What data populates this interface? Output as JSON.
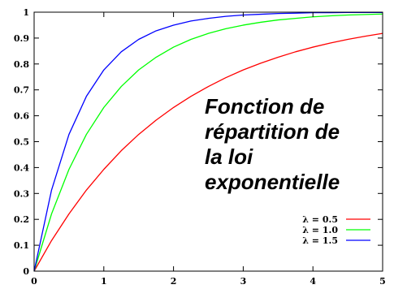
{
  "chart_data": {
    "type": "line",
    "title": "",
    "annotation": [
      "Fonction de",
      "répartition de",
      "la loi",
      "exponentielle"
    ],
    "xlabel": "",
    "ylabel": "",
    "xlim": [
      0,
      5
    ],
    "ylim": [
      0,
      1
    ],
    "x_ticks": [
      "0",
      "1",
      "2",
      "3",
      "4",
      "5"
    ],
    "y_ticks": [
      "0",
      "0.1",
      "0.2",
      "0.3",
      "0.4",
      "0.5",
      "0.6",
      "0.7",
      "0.8",
      "0.9",
      "1"
    ],
    "grid": false,
    "legend_position": "bottom-right",
    "x": [
      0,
      0.25,
      0.5,
      0.75,
      1,
      1.25,
      1.5,
      1.75,
      2,
      2.25,
      2.5,
      2.75,
      3,
      3.25,
      3.5,
      3.75,
      4,
      4.25,
      4.5,
      4.75,
      5
    ],
    "series": [
      {
        "name": "λ = 0.5",
        "color": "#ff0000",
        "values": [
          0,
          0.118,
          0.221,
          0.313,
          0.393,
          0.465,
          0.528,
          0.583,
          0.632,
          0.675,
          0.713,
          0.747,
          0.777,
          0.803,
          0.826,
          0.847,
          0.865,
          0.881,
          0.895,
          0.907,
          0.918
        ]
      },
      {
        "name": "λ = 1.0",
        "color": "#00ff00",
        "values": [
          0,
          0.221,
          0.393,
          0.528,
          0.632,
          0.713,
          0.777,
          0.826,
          0.865,
          0.895,
          0.918,
          0.936,
          0.95,
          0.961,
          0.97,
          0.976,
          0.982,
          0.986,
          0.989,
          0.991,
          0.993
        ]
      },
      {
        "name": "λ = 1.5",
        "color": "#0000ff",
        "values": [
          0,
          0.313,
          0.528,
          0.675,
          0.777,
          0.847,
          0.895,
          0.928,
          0.95,
          0.966,
          0.976,
          0.984,
          0.989,
          0.992,
          0.995,
          0.996,
          0.998,
          0.998,
          0.999,
          0.999,
          0.999
        ]
      }
    ]
  }
}
